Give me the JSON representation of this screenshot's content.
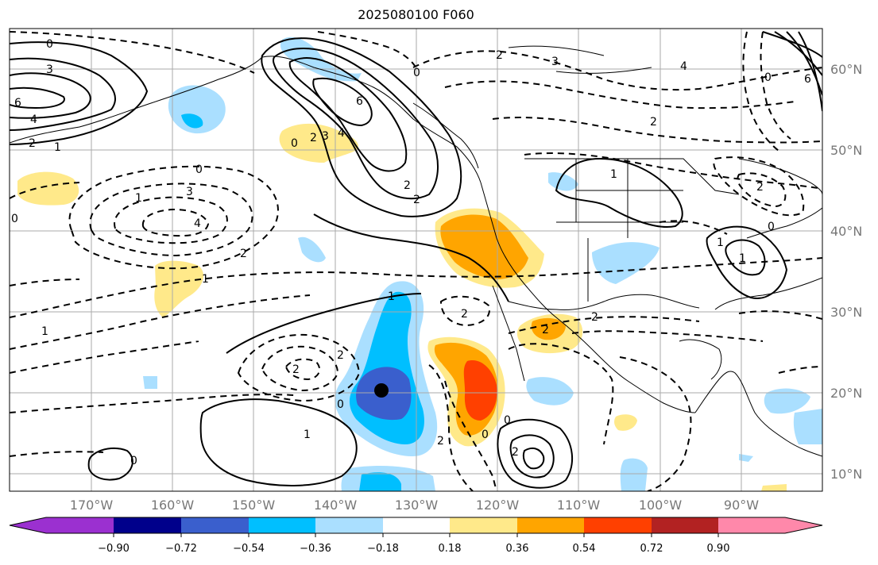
{
  "title": "2025080100 F060",
  "lat_labels": [
    "60°N",
    "50°N",
    "40°N",
    "30°N",
    "20°N",
    "10°N"
  ],
  "lon_labels": [
    "170°W",
    "160°W",
    "150°W",
    "140°W",
    "130°W",
    "120°W",
    "110°W",
    "100°W",
    "90°W"
  ],
  "colorbar": {
    "ticks": [
      "−0.90",
      "−0.72",
      "−0.54",
      "−0.36",
      "−0.18",
      "0.18",
      "0.36",
      "0.54",
      "0.72",
      "0.90"
    ],
    "colors": [
      "#9b30d0",
      "#00008b",
      "#3a5fcd",
      "#00bfff",
      "#aadfff",
      "#ffffff",
      "#ffe98a",
      "#ffa500",
      "#ff4000",
      "#b22222",
      "#ff88aa"
    ]
  },
  "contour_labels": [
    "0",
    "3",
    "6",
    "4",
    "2",
    "1",
    "0",
    "2",
    "4",
    "3",
    "6",
    "2",
    "0",
    "3",
    "4",
    "1",
    "2",
    "2",
    "0",
    "2",
    "6",
    "0",
    "1",
    "2",
    "4",
    "0",
    "3",
    "2",
    "1",
    "1",
    "2",
    "2",
    "2",
    "1",
    "0",
    "1",
    "2",
    "2",
    "0",
    "2",
    "0",
    "0",
    "2",
    "0",
    "1",
    "1"
  ]
}
